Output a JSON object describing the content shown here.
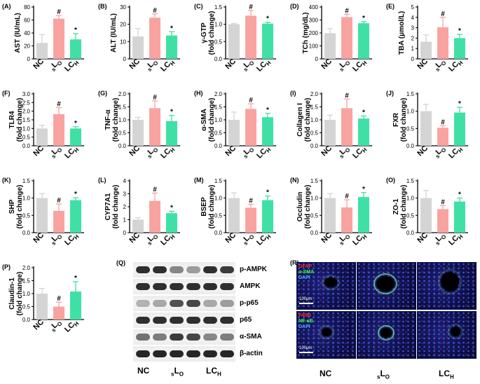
{
  "colors": {
    "NC": "#d4d4d4",
    "LO": "#f9a3a0",
    "LCH": "#3fe0a6",
    "error": "#000000"
  },
  "groups": [
    "NC",
    "LO",
    "LCH"
  ],
  "group_labels": [
    {
      "sub": "",
      "main": "NC",
      "subafter": ""
    },
    {
      "sub": "s",
      "main": "L",
      "subafter": "O"
    },
    {
      "sub": "",
      "main": "LC",
      "subafter": "H"
    }
  ],
  "chart_data": [
    {
      "panel": "(A)",
      "type": "bar",
      "ylabel": "AST (IU/mL)",
      "ylim": [
        0,
        80
      ],
      "yticks": [
        0,
        20,
        40,
        60,
        80
      ],
      "categories": [
        "NC",
        "LO",
        "LCH"
      ],
      "values": [
        24.5,
        62,
        30
      ],
      "errors": [
        13,
        5,
        9
      ],
      "marks": [
        "",
        "#",
        "*"
      ]
    },
    {
      "panel": "(B)",
      "type": "bar",
      "ylabel": "ALT (IU/mL)",
      "ylim": [
        0,
        30
      ],
      "yticks": [
        0,
        10,
        20,
        30
      ],
      "categories": [
        "NC",
        "LO",
        "LCH"
      ],
      "values": [
        13,
        23.8,
        13.5
      ],
      "errors": [
        4.5,
        2.2,
        2.2
      ],
      "marks": [
        "",
        "#",
        "*"
      ]
    },
    {
      "panel": "(C)",
      "type": "bar",
      "ylabel": "γ-GTP (fold change)",
      "ylim": [
        0,
        1.5
      ],
      "yticks": [
        0.0,
        0.5,
        1.0,
        1.5
      ],
      "categories": [
        "NC",
        "LO",
        "LCH"
      ],
      "values": [
        1.0,
        1.25,
        1.02
      ],
      "errors": [
        0.02,
        0.15,
        0.04
      ],
      "marks": [
        "",
        "#",
        "*"
      ]
    },
    {
      "panel": "(D)",
      "type": "bar",
      "ylabel": "TCh (mg/dL)",
      "ylim": [
        0,
        400
      ],
      "yticks": [
        0,
        100,
        200,
        300,
        400
      ],
      "categories": [
        "NC",
        "LO",
        "LCH"
      ],
      "values": [
        198,
        322,
        275
      ],
      "errors": [
        35,
        22,
        12
      ],
      "marks": [
        "",
        "#",
        "*"
      ]
    },
    {
      "panel": "(E)",
      "type": "bar",
      "ylabel": "TBA (μmol/L)",
      "ylim": [
        0,
        5
      ],
      "yticks": [
        0,
        1,
        2,
        3,
        4,
        5
      ],
      "categories": [
        "NC",
        "LO",
        "LCH"
      ],
      "values": [
        1.65,
        3.05,
        2.0
      ],
      "errors": [
        0.65,
        0.95,
        0.35
      ],
      "marks": [
        "",
        "#",
        "*"
      ]
    },
    {
      "panel": "(F)",
      "type": "bar",
      "ylabel": "TLR4 (fold change)",
      "ylim": [
        0,
        3.0
      ],
      "yticks": [
        0.0,
        0.5,
        1.0,
        1.5,
        2.0,
        2.5,
        3.0
      ],
      "categories": [
        "NC",
        "LO",
        "LCH"
      ],
      "values": [
        1.0,
        1.83,
        1.0
      ],
      "errors": [
        0.18,
        0.38,
        0.1
      ],
      "marks": [
        "",
        "#",
        "*"
      ]
    },
    {
      "panel": "(G)",
      "type": "bar",
      "ylabel": "TNF-α (fold change)",
      "ylim": [
        0,
        2.0
      ],
      "yticks": [
        0.0,
        0.5,
        1.0,
        1.5,
        2.0
      ],
      "categories": [
        "NC",
        "LO",
        "LCH"
      ],
      "values": [
        1.0,
        1.45,
        0.95
      ],
      "errors": [
        0.1,
        0.28,
        0.22
      ],
      "marks": [
        "",
        "#",
        "*"
      ]
    },
    {
      "panel": "(H)",
      "type": "bar",
      "ylabel": "α-SMA (fold change)",
      "ylim": [
        0,
        2.0
      ],
      "yticks": [
        0.0,
        0.5,
        1.0,
        1.5,
        2.0
      ],
      "categories": [
        "NC",
        "LO",
        "LCH"
      ],
      "values": [
        1.0,
        1.42,
        1.1
      ],
      "errors": [
        0.3,
        0.2,
        0.15
      ],
      "marks": [
        "",
        "#",
        "*"
      ]
    },
    {
      "panel": "(I)",
      "type": "bar",
      "ylabel": "Collagen I (fold change)",
      "ylim": [
        0,
        2.0
      ],
      "yticks": [
        0.0,
        0.5,
        1.0,
        1.5,
        2.0
      ],
      "categories": [
        "NC",
        "LO",
        "LCH"
      ],
      "values": [
        1.0,
        1.45,
        1.05
      ],
      "errors": [
        0.18,
        0.35,
        0.1
      ],
      "marks": [
        "",
        "#",
        "*"
      ]
    },
    {
      "panel": "(J)",
      "type": "bar",
      "ylabel": "FXR (fold change)",
      "ylim": [
        0,
        1.5
      ],
      "yticks": [
        0.0,
        0.5,
        1.0,
        1.5
      ],
      "categories": [
        "NC",
        "LO",
        "LCH"
      ],
      "values": [
        1.0,
        0.52,
        0.96
      ],
      "errors": [
        0.2,
        0.06,
        0.15
      ],
      "marks": [
        "",
        "#",
        "*"
      ]
    },
    {
      "panel": "(K)",
      "type": "bar",
      "ylabel": "SHP (fold change)",
      "ylim": [
        0,
        1.5
      ],
      "yticks": [
        0.0,
        0.5,
        1.0,
        1.5
      ],
      "categories": [
        "NC",
        "LO",
        "LCH"
      ],
      "values": [
        1.0,
        0.63,
        0.94
      ],
      "errors": [
        0.13,
        0.2,
        0.07
      ],
      "marks": [
        "",
        "#",
        "*"
      ]
    },
    {
      "panel": "(L)",
      "type": "bar",
      "ylabel": "CYP7A1 (fold change)",
      "ylim": [
        0,
        4
      ],
      "yticks": [
        0,
        1,
        2,
        3,
        4
      ],
      "categories": [
        "NC",
        "LO",
        "LCH"
      ],
      "values": [
        1.0,
        2.45,
        1.5
      ],
      "errors": [
        0.15,
        0.6,
        0.15
      ],
      "marks": [
        "",
        "#",
        "*"
      ]
    },
    {
      "panel": "(M)",
      "type": "bar",
      "ylabel": "BSEP (fold change)",
      "ylim": [
        0,
        1.5
      ],
      "yticks": [
        0.0,
        0.5,
        1.0,
        1.5
      ],
      "categories": [
        "NC",
        "LO",
        "LCH"
      ],
      "values": [
        1.0,
        0.72,
        0.94
      ],
      "errors": [
        0.15,
        0.1,
        0.12
      ],
      "marks": [
        "",
        "#",
        "*"
      ]
    },
    {
      "panel": "(N)",
      "type": "bar",
      "ylabel": "Occludin (fold change)",
      "ylim": [
        0,
        1.5
      ],
      "yticks": [
        0.0,
        0.5,
        1.0,
        1.5
      ],
      "categories": [
        "NC",
        "LO",
        "LCH"
      ],
      "values": [
        1.0,
        0.73,
        1.03
      ],
      "errors": [
        0.13,
        0.22,
        0.13
      ],
      "marks": [
        "",
        "#",
        "*"
      ]
    },
    {
      "panel": "(O)",
      "type": "bar",
      "ylabel": "ZO-1 (fold change)",
      "ylim": [
        0,
        1.5
      ],
      "yticks": [
        0.0,
        0.5,
        1.0,
        1.5
      ],
      "categories": [
        "NC",
        "LO",
        "LCH"
      ],
      "values": [
        1.0,
        0.68,
        0.9
      ],
      "errors": [
        0.22,
        0.1,
        0.1
      ],
      "marks": [
        "",
        "#",
        "*"
      ]
    },
    {
      "panel": "(P)",
      "type": "bar",
      "ylabel": "Claudin-1 (fold change)",
      "ylim": [
        0,
        2.0
      ],
      "yticks": [
        0.0,
        0.5,
        1.0,
        1.5,
        2.0
      ],
      "categories": [
        "NC",
        "LO",
        "LCH"
      ],
      "values": [
        1.0,
        0.5,
        1.08
      ],
      "errors": [
        0.2,
        0.17,
        0.38
      ],
      "marks": [
        "",
        "#",
        "*"
      ]
    }
  ],
  "blot": {
    "panel": "(Q)",
    "proteins": [
      "p-AMPK",
      "AMPK",
      "p-p65",
      "p65",
      "α-SMA",
      "β-actin"
    ],
    "band_intensity": [
      [
        0.9,
        0.9,
        0.5,
        0.4,
        0.9,
        0.85
      ],
      [
        0.9,
        0.9,
        0.9,
        0.9,
        0.9,
        0.9
      ],
      [
        0.3,
        0.35,
        0.75,
        0.8,
        0.35,
        0.4
      ],
      [
        0.9,
        0.9,
        0.9,
        0.9,
        0.9,
        0.9
      ],
      [
        0.6,
        0.55,
        0.85,
        0.8,
        0.5,
        0.55
      ],
      [
        0.95,
        0.95,
        0.95,
        0.95,
        0.95,
        0.95
      ]
    ]
  },
  "if_panel": {
    "panel": "(R)",
    "top_legend": [
      "GFAP",
      "α-SMA",
      "DAPI"
    ],
    "top_legend_colors": [
      "#ff3030",
      "#40ff40",
      "#4aa8ff"
    ],
    "bottom_legend": [
      "F4/80",
      "NF-κB",
      "DAPI"
    ],
    "bottom_legend_colors": [
      "#ff3030",
      "#40ff40",
      "#4aa8ff"
    ],
    "scale_text": "100μm"
  }
}
